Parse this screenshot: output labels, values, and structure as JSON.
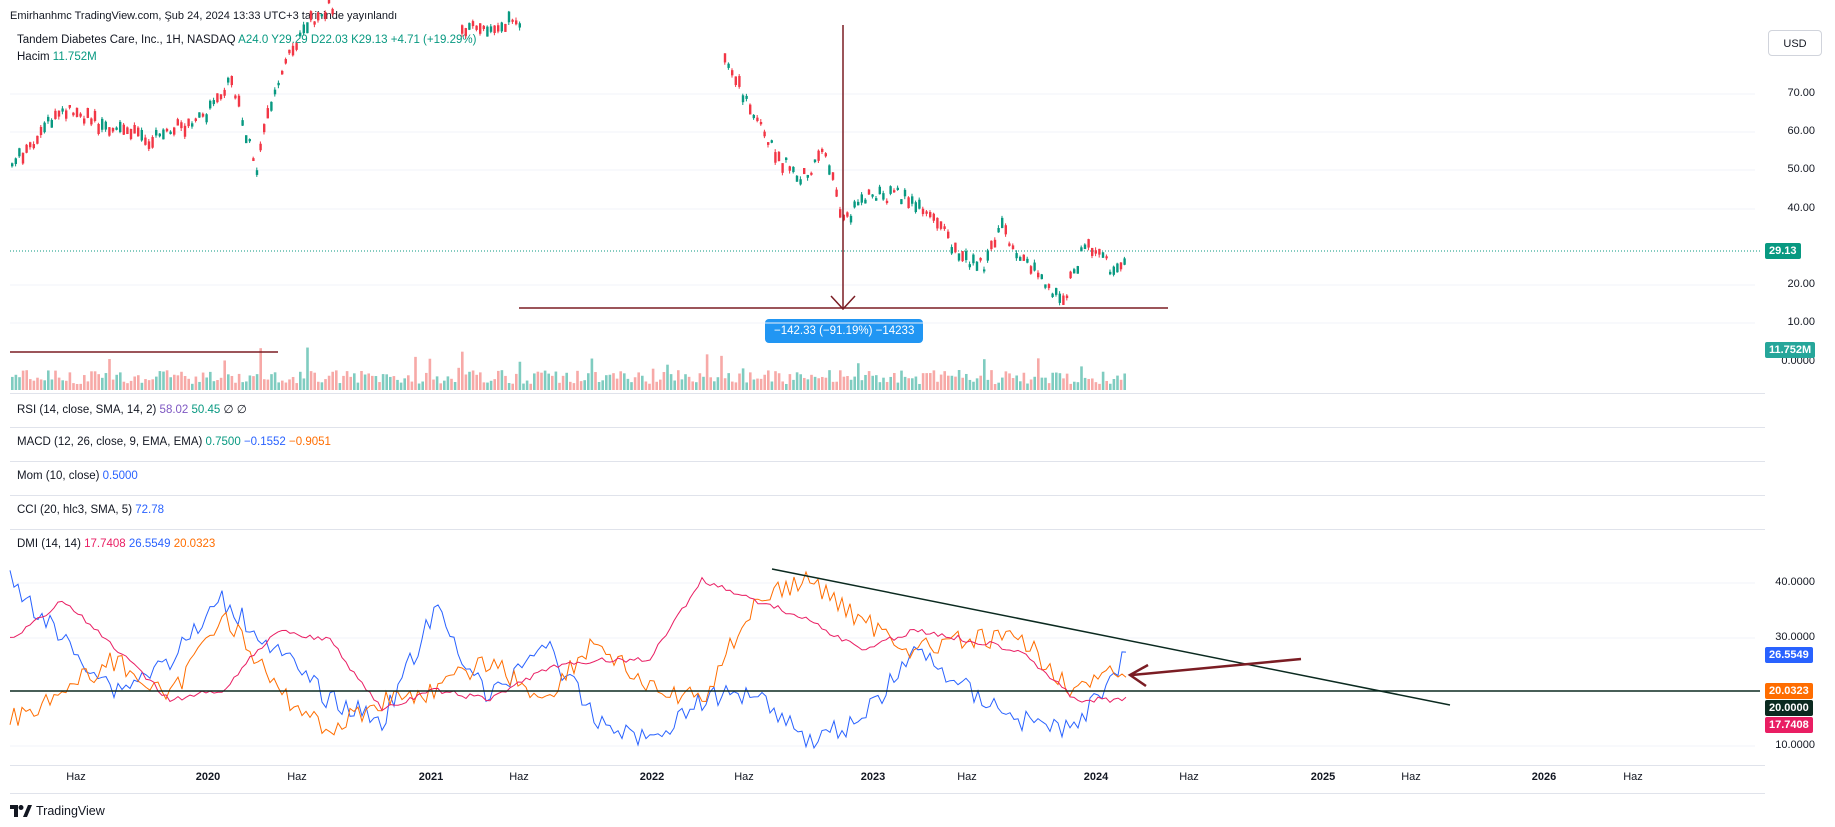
{
  "credit": "Emirhanhmc TradingView.com, Şub 24, 2024 13:33 UTC+3 tarihinde yayınlandı",
  "legend": {
    "title": "Tandem Diabetes Care, Inc., 1H, NASDAQ",
    "ohlc": "A24.0  Y29.29  D22.03  K29.13  +4.71 (+19.29%)",
    "volume_label": "Hacim",
    "volume_value": "11.752M"
  },
  "currency_button": "USD",
  "price_axis": [
    "70.00",
    "60.00",
    "50.00",
    "40.00",
    "20.00",
    "10.00",
    "0.0000"
  ],
  "price_tag": "29.13",
  "volume_tag": "11.752M",
  "measure_label": "−142.33 (−91.19%) −14233",
  "indicators": {
    "rsi": {
      "name": "RSI (14, close, SMA, 14, 2)",
      "v1": "58.02",
      "v2": "50.45",
      "v3": "∅  ∅"
    },
    "macd": {
      "name": "MACD (12, 26, close, 9, EMA, EMA)",
      "v1": "0.7500",
      "v2": "−0.1552",
      "v3": "−0.9051"
    },
    "mom": {
      "name": "Mom (10, close)",
      "v1": "0.5000"
    },
    "cci": {
      "name": "CCI (20, hlc3, SMA, 5)",
      "v1": "72.78"
    },
    "dmi": {
      "name": "DMI (14, 14)",
      "v1": "17.7408",
      "v2": "26.5549",
      "v3": "20.0323"
    }
  },
  "dmi_axis": [
    "40.0000",
    "30.0000",
    "10.0000"
  ],
  "dmi_tags": {
    "plus": "26.5549",
    "minus": "20.0323",
    "level": "20.0000",
    "adx": "17.7408"
  },
  "time_axis": [
    "Haz",
    "2020",
    "Haz",
    "2021",
    "Haz",
    "2022",
    "Haz",
    "2023",
    "Haz",
    "2024",
    "Haz",
    "2025",
    "Haz",
    "2026",
    "Haz"
  ],
  "brand": "TradingView",
  "colors": {
    "up": "#089981",
    "down": "#f23645",
    "vol_up": "#7fccc0",
    "vol_down": "#f7a9a7",
    "trend_line": "#7b1d24",
    "dmi_plus": "#2962ff",
    "dmi_minus": "#ff6d00",
    "adx": "#e91e63",
    "dmi_trend": "#0b2a20",
    "measure": "#2196f3"
  }
}
